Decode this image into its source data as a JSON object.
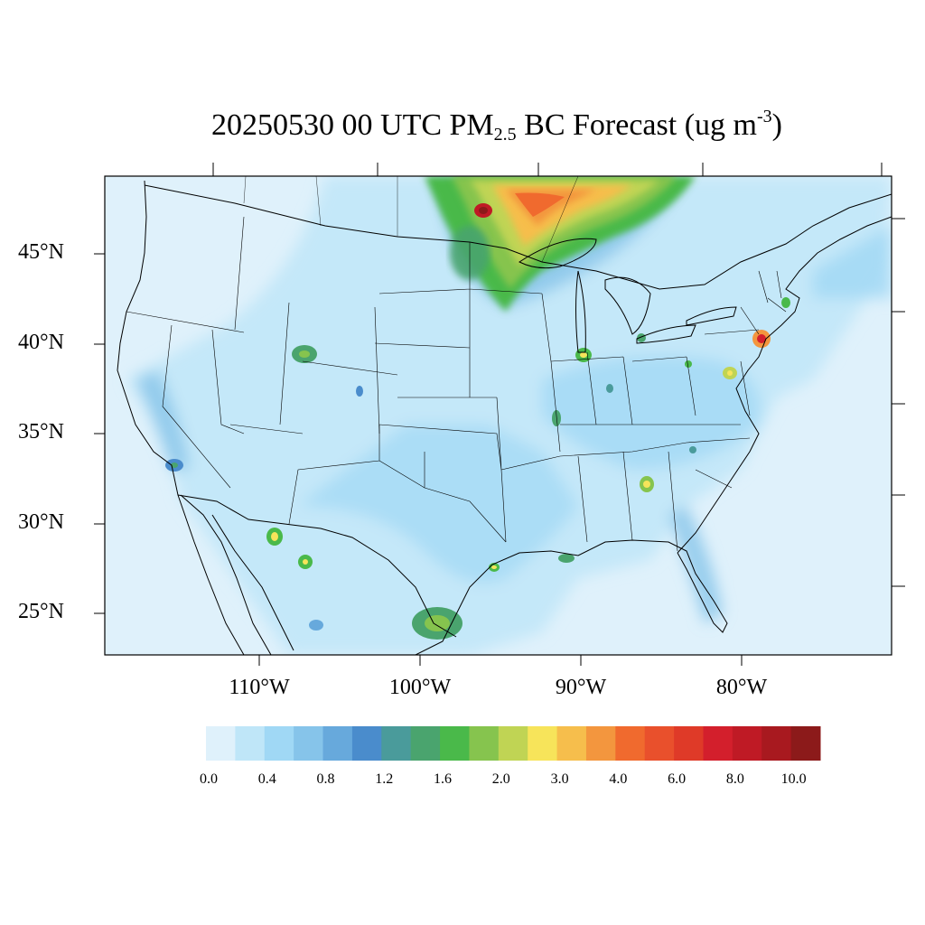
{
  "title": {
    "prefix": "20250530 00 UTC PM",
    "subscript": "2.5",
    "middle": " BC Forecast (ug m",
    "superscript": "-3",
    "suffix": ")"
  },
  "map": {
    "region": "CONUS",
    "lat_labels": [
      "45°N",
      "40°N",
      "35°N",
      "30°N",
      "25°N"
    ],
    "lon_labels": [
      "110°W",
      "100°W",
      "90°W",
      "80°W"
    ],
    "background_fill": "#dff1fb"
  },
  "colorbar": {
    "labels": [
      "0.0",
      "0.4",
      "0.8",
      "1.2",
      "1.6",
      "2.0",
      "3.0",
      "4.0",
      "6.0",
      "8.0",
      "10.0"
    ],
    "colors": [
      "#dff1fb",
      "#bfe6f8",
      "#a0d8f5",
      "#86c4ea",
      "#67a9dc",
      "#4a8ccc",
      "#4a9b9b",
      "#4aa46e",
      "#4ab94a",
      "#86c44e",
      "#c0d454",
      "#f7e45a",
      "#f6be4c",
      "#f3963e",
      "#f06a2e",
      "#e9502c",
      "#df3a28",
      "#d31f2c",
      "#bf1a25",
      "#a8191f",
      "#8c1a1a"
    ]
  }
}
